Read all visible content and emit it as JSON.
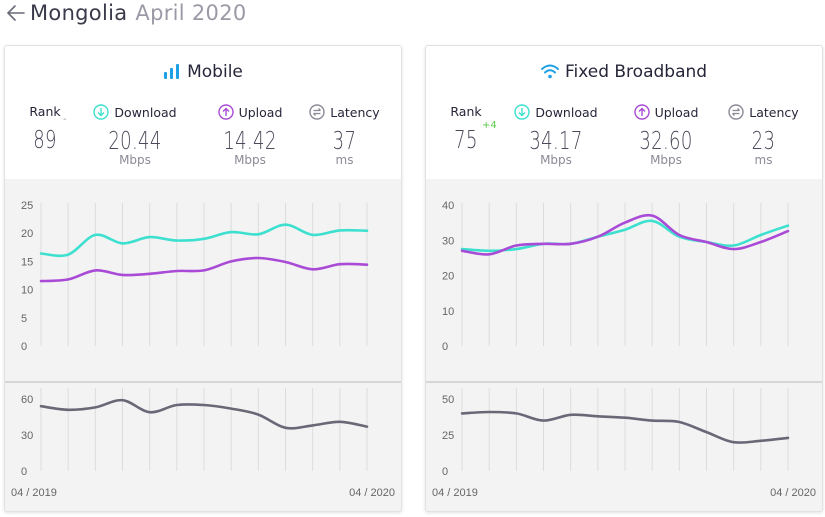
{
  "header": {
    "country": "Mongolia",
    "period": "April 2020"
  },
  "colors": {
    "download": "#3de0cf",
    "upload": "#a94bd6",
    "latency": "#6a6876",
    "rank_up": "#5cc84a"
  },
  "cards": [
    {
      "id": "mobile",
      "title": "Mobile",
      "icon": "signal-bars-icon",
      "rank": "89",
      "rank_change": "-",
      "download": {
        "label": "Download",
        "value": "20.44",
        "unit": "Mbps"
      },
      "upload": {
        "label": "Upload",
        "value": "14.42",
        "unit": "Mbps"
      },
      "latency": {
        "label": "Latency",
        "value": "37",
        "unit": "ms"
      },
      "rank_label": "Rank"
    },
    {
      "id": "fixed",
      "title": "Fixed Broadband",
      "icon": "wifi-icon",
      "rank": "75",
      "rank_change": "+4",
      "download": {
        "label": "Download",
        "value": "34.17",
        "unit": "Mbps"
      },
      "upload": {
        "label": "Upload",
        "value": "32.60",
        "unit": "Mbps"
      },
      "latency": {
        "label": "Latency",
        "value": "23",
        "unit": "ms"
      },
      "rank_label": "Rank"
    }
  ],
  "chart_data": [
    {
      "type": "line",
      "panel": "mobile-speed",
      "x": [
        "04/2019",
        "05/2019",
        "06/2019",
        "07/2019",
        "08/2019",
        "09/2019",
        "10/2019",
        "11/2019",
        "12/2019",
        "01/2020",
        "02/2020",
        "03/2020",
        "04/2020"
      ],
      "x_tick_labels": [
        "04 / 2019",
        "04 / 2020"
      ],
      "ylim": [
        0,
        25
      ],
      "yticks": [
        0,
        5,
        10,
        15,
        20,
        25
      ],
      "series": [
        {
          "key": "download",
          "values": [
            16.4,
            16.2,
            19.7,
            18.2,
            19.3,
            18.7,
            19.0,
            20.2,
            19.8,
            21.5,
            19.7,
            20.5,
            20.44
          ]
        },
        {
          "key": "upload",
          "values": [
            11.5,
            11.8,
            13.4,
            12.6,
            12.8,
            13.3,
            13.4,
            15.0,
            15.6,
            14.9,
            13.6,
            14.5,
            14.42
          ]
        }
      ]
    },
    {
      "type": "line",
      "panel": "mobile-latency",
      "x": [
        "04/2019",
        "05/2019",
        "06/2019",
        "07/2019",
        "08/2019",
        "09/2019",
        "10/2019",
        "11/2019",
        "12/2019",
        "01/2020",
        "02/2020",
        "03/2020",
        "04/2020"
      ],
      "ylim": [
        0,
        60
      ],
      "yticks": [
        0,
        30,
        60
      ],
      "series": [
        {
          "key": "latency",
          "values": [
            54,
            51,
            53,
            59,
            49,
            55,
            55,
            52,
            47,
            36,
            38,
            41,
            37
          ]
        }
      ]
    },
    {
      "type": "line",
      "panel": "fixed-speed",
      "x": [
        "04/2019",
        "05/2019",
        "06/2019",
        "07/2019",
        "08/2019",
        "09/2019",
        "10/2019",
        "11/2019",
        "12/2019",
        "01/2020",
        "02/2020",
        "03/2020",
        "04/2020"
      ],
      "x_tick_labels": [
        "04 / 2019",
        "04 / 2020"
      ],
      "ylim": [
        0,
        40
      ],
      "yticks": [
        0,
        10,
        20,
        30,
        40
      ],
      "series": [
        {
          "key": "download",
          "values": [
            27.5,
            27.0,
            27.5,
            29.0,
            29.0,
            31.0,
            33.0,
            35.5,
            31.0,
            29.5,
            28.5,
            31.5,
            34.17
          ]
        },
        {
          "key": "upload",
          "values": [
            27.0,
            26.0,
            28.5,
            29.0,
            29.0,
            31.0,
            35.0,
            37.0,
            31.5,
            29.5,
            27.5,
            29.5,
            32.6
          ]
        }
      ]
    },
    {
      "type": "line",
      "panel": "fixed-latency",
      "x": [
        "04/2019",
        "05/2019",
        "06/2019",
        "07/2019",
        "08/2019",
        "09/2019",
        "10/2019",
        "11/2019",
        "12/2019",
        "01/2020",
        "02/2020",
        "03/2020",
        "04/2020"
      ],
      "ylim": [
        0,
        50
      ],
      "yticks": [
        0,
        25,
        50
      ],
      "series": [
        {
          "key": "latency",
          "values": [
            40,
            41,
            40,
            35,
            39,
            38,
            37,
            35,
            34,
            27,
            20,
            21,
            23
          ]
        }
      ]
    }
  ]
}
